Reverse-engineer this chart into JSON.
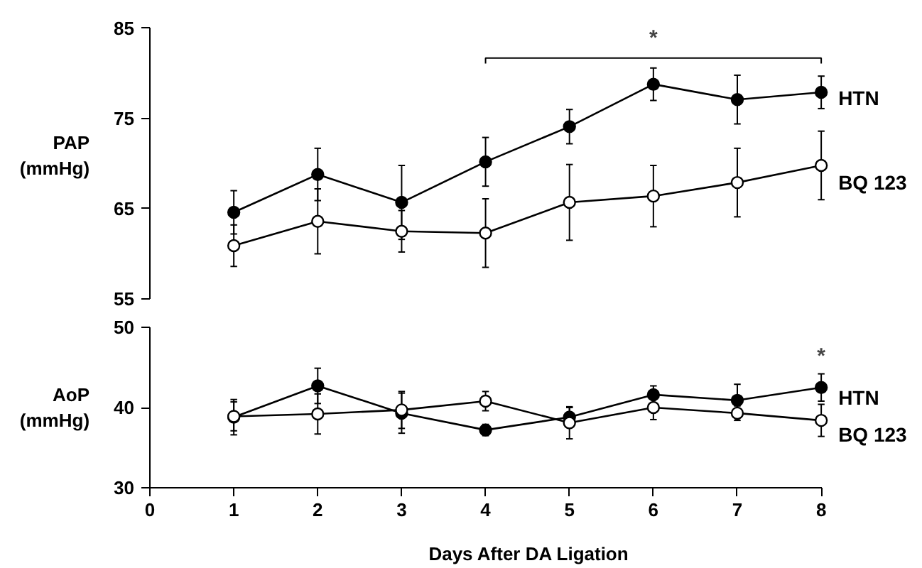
{
  "chart_data": [
    {
      "type": "line",
      "ylabel": "PAP\n(mmHg)",
      "x": [
        1,
        2,
        3,
        4,
        5,
        6,
        7,
        8
      ],
      "xlim": [
        0,
        8
      ],
      "ylim": [
        55,
        85
      ],
      "yticks": [
        55,
        65,
        75,
        85
      ],
      "tick_labels": "y",
      "marker": "circle",
      "line_style": "solid",
      "annotations": [
        "*"
      ],
      "series": [
        {
          "name": "HTN",
          "color": "#000000",
          "values": [
            64.6,
            68.8,
            65.7,
            70.2,
            74.1,
            78.8,
            77.1,
            77.9
          ],
          "errors": [
            2.4,
            2.9,
            4.1,
            2.7,
            1.9,
            1.8,
            2.7,
            1.8
          ]
        },
        {
          "name": "BQ 123",
          "color": "#000000",
          "values": [
            60.9,
            63.6,
            62.5,
            62.3,
            65.7,
            66.4,
            67.9,
            69.8
          ],
          "errors": [
            2.3,
            3.6,
            2.3,
            3.8,
            4.2,
            3.4,
            3.8,
            3.8
          ]
        }
      ]
    },
    {
      "type": "line",
      "ylabel": "AoP\n(mmHg)",
      "xlabel": "Days After DA Ligation",
      "x": [
        1,
        2,
        3,
        4,
        5,
        6,
        7,
        8
      ],
      "xlim": [
        0,
        8
      ],
      "xticks": [
        0,
        1,
        2,
        3,
        4,
        5,
        6,
        7,
        8
      ],
      "ylim": [
        30,
        50
      ],
      "yticks": [
        30,
        40,
        50
      ],
      "marker": "circle",
      "line_style": "solid",
      "annotations": [
        "*"
      ],
      "series": [
        {
          "name": "HTN",
          "color": "#000000",
          "values": [
            38.8,
            42.7,
            39.3,
            37.2,
            38.8,
            41.6,
            40.9,
            42.5
          ],
          "errors": [
            2.2,
            2.2,
            2.5,
            0.7,
            1.2,
            1.1,
            2.0,
            1.7
          ]
        },
        {
          "name": "BQ 123",
          "color": "#000000",
          "values": [
            38.9,
            39.2,
            39.7,
            40.8,
            38.1,
            40.0,
            39.3,
            38.4
          ],
          "errors": [
            1.8,
            2.5,
            2.3,
            1.2,
            2.0,
            1.5,
            0.9,
            2.0
          ]
        }
      ]
    }
  ]
}
